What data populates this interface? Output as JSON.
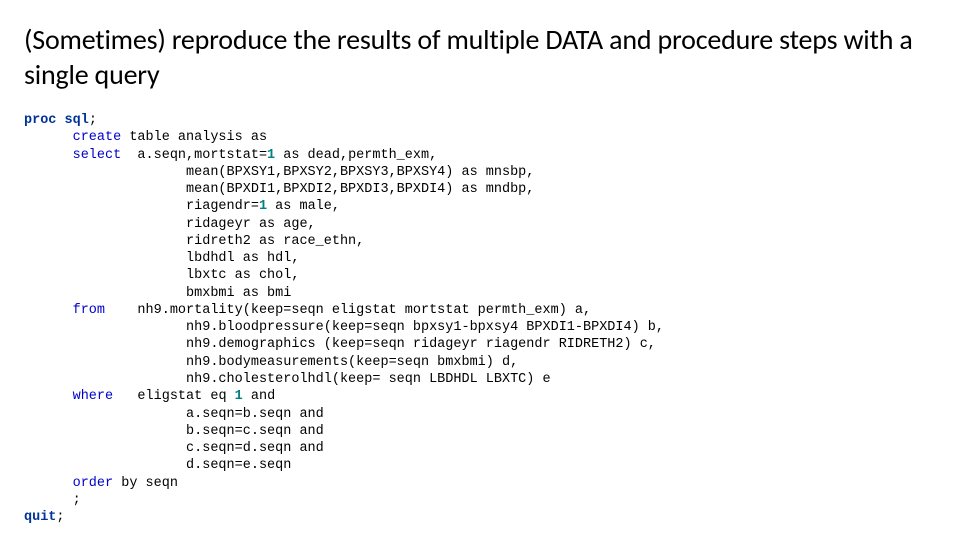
{
  "title": "(Sometimes) reproduce the results of multiple DATA and procedure steps with a single query",
  "colors": {
    "background": "#ffffff",
    "text": "#000000",
    "keyword_bold": "#003399",
    "keyword": "#0000cd",
    "literal": "#008080"
  },
  "typography": {
    "title_font": "Calibri",
    "title_size_pt": 28,
    "title_weight": 400,
    "code_font": "Courier New",
    "code_size_pt": 13.5,
    "code_line_height": 1.28
  },
  "code": {
    "l01_proc": "proc",
    "l01_sql": "sql",
    "l01_semi": ";",
    "l02_create": "create",
    "l02_rest": " table analysis as",
    "l03_select": "select",
    "l03_a": "  a.seqn,mortstat=",
    "l03_one": "1",
    "l03_b": " as dead,permth_exm,",
    "l04": "mean(BPXSY1,BPXSY2,BPXSY3,BPXSY4) as mnsbp,",
    "l05": "mean(BPXDI1,BPXDI2,BPXDI3,BPXDI4) as mndbp,",
    "l06_a": "riagendr=",
    "l06_one": "1",
    "l06_b": " as male,",
    "l07": "ridageyr as age,",
    "l08": "ridreth2 as race_ethn,",
    "l09": "lbdhdl as hdl,",
    "l10": "lbxtc as chol,",
    "l11": "bmxbmi as bmi",
    "l12_from": "from",
    "l12_rest": "    nh9.mortality(keep=seqn eligstat mortstat permth_exm) a,",
    "l13": "nh9.bloodpressure(keep=seqn bpxsy1-bpxsy4 BPXDI1-BPXDI4) b,",
    "l14": "nh9.demographics (keep=seqn ridageyr riagendr RIDRETH2) c,",
    "l15": "nh9.bodymeasurements(keep=seqn bmxbmi) d,",
    "l16": "nh9.cholesterolhdl(keep= seqn LBDHDL LBXTC) e",
    "l17_where": "where",
    "l17_a": "   eligstat eq ",
    "l17_one": "1",
    "l17_b": " and",
    "l18": "a.seqn=b.seqn and",
    "l19": "b.seqn=c.seqn and",
    "l20": "c.seqn=d.seqn and",
    "l21": "d.seqn=e.seqn",
    "l22_order": "order",
    "l22_by": " by seqn",
    "l23_semi": ";",
    "l24_quit": "quit",
    "l24_semi": ";"
  }
}
